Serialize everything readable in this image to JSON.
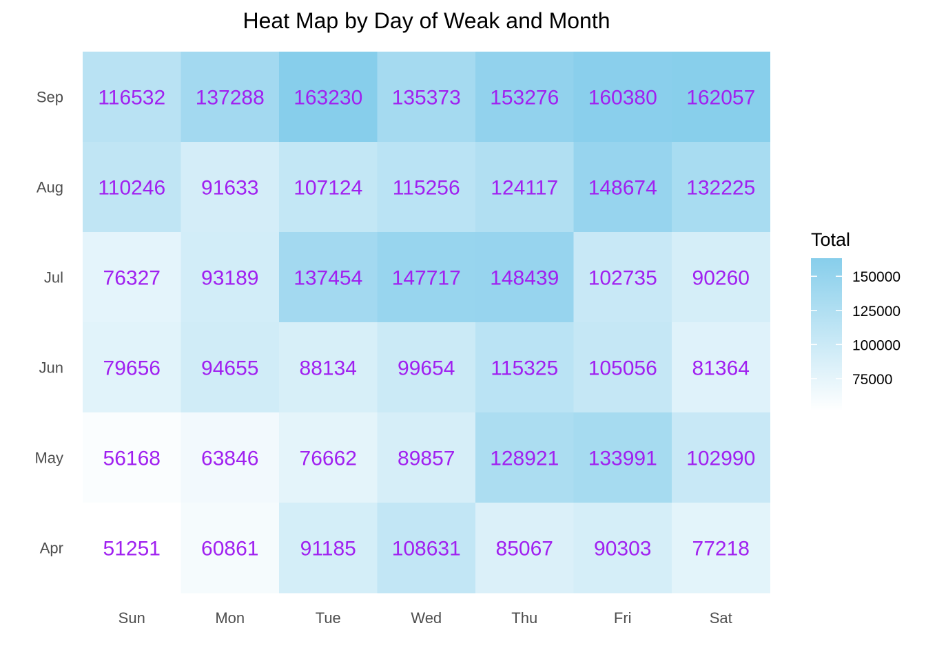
{
  "chart_data": {
    "type": "heatmap",
    "title": "Heat Map by Day of Weak and Month",
    "xlabel": "",
    "ylabel": "",
    "x_categories": [
      "Sun",
      "Mon",
      "Tue",
      "Wed",
      "Thu",
      "Fri",
      "Sat"
    ],
    "y_categories": [
      "Sep",
      "Aug",
      "Jul",
      "Jun",
      "May",
      "Apr"
    ],
    "values": [
      [
        116532,
        137288,
        163230,
        135373,
        153276,
        160380,
        162057
      ],
      [
        110246,
        91633,
        107124,
        115256,
        124117,
        148674,
        132225
      ],
      [
        76327,
        93189,
        137454,
        147717,
        148439,
        102735,
        90260
      ],
      [
        79656,
        94655,
        88134,
        99654,
        115325,
        105056,
        81364
      ],
      [
        56168,
        63846,
        76662,
        89857,
        128921,
        133991,
        102990
      ],
      [
        51251,
        60861,
        91185,
        108631,
        85067,
        90303,
        77218
      ]
    ],
    "legend": {
      "title": "Total",
      "ticks": [
        150000,
        125000,
        100000,
        75000
      ],
      "range": [
        51251,
        163230
      ],
      "placement": "right"
    },
    "colors": {
      "low": "#ffffff",
      "high": "#87ceeb",
      "label": "#a020f0"
    },
    "grid": false
  }
}
